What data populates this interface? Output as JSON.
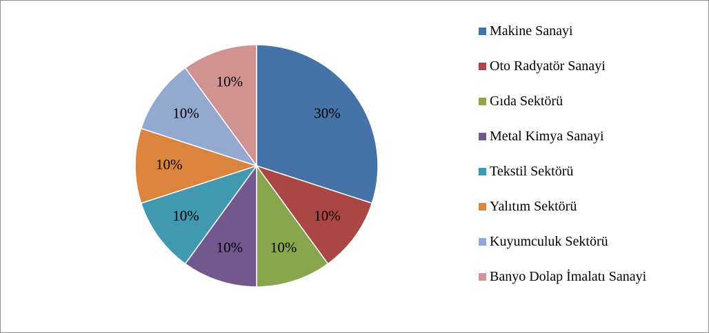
{
  "chart_data": {
    "type": "pie",
    "categories": [
      "Makine Sanayi",
      "Oto Radyatör Sanayi",
      "Gıda Sektörü",
      "Metal Kimya Sanayi",
      "Tekstil Sektörü",
      "Yalıtım Sektörü",
      "Kuyumculuk Sektörü",
      "Banyo Dolap İmalatı Sanayi"
    ],
    "values": [
      30,
      10,
      10,
      10,
      10,
      10,
      10,
      10
    ],
    "value_labels": [
      "30%",
      "10%",
      "10%",
      "10%",
      "10%",
      "10%",
      "10%",
      "10%"
    ],
    "colors": [
      "#4572a7",
      "#aa4643",
      "#89a54e",
      "#71588f",
      "#4198af",
      "#db843d",
      "#93a9cf",
      "#d19392"
    ],
    "legend": "right"
  }
}
